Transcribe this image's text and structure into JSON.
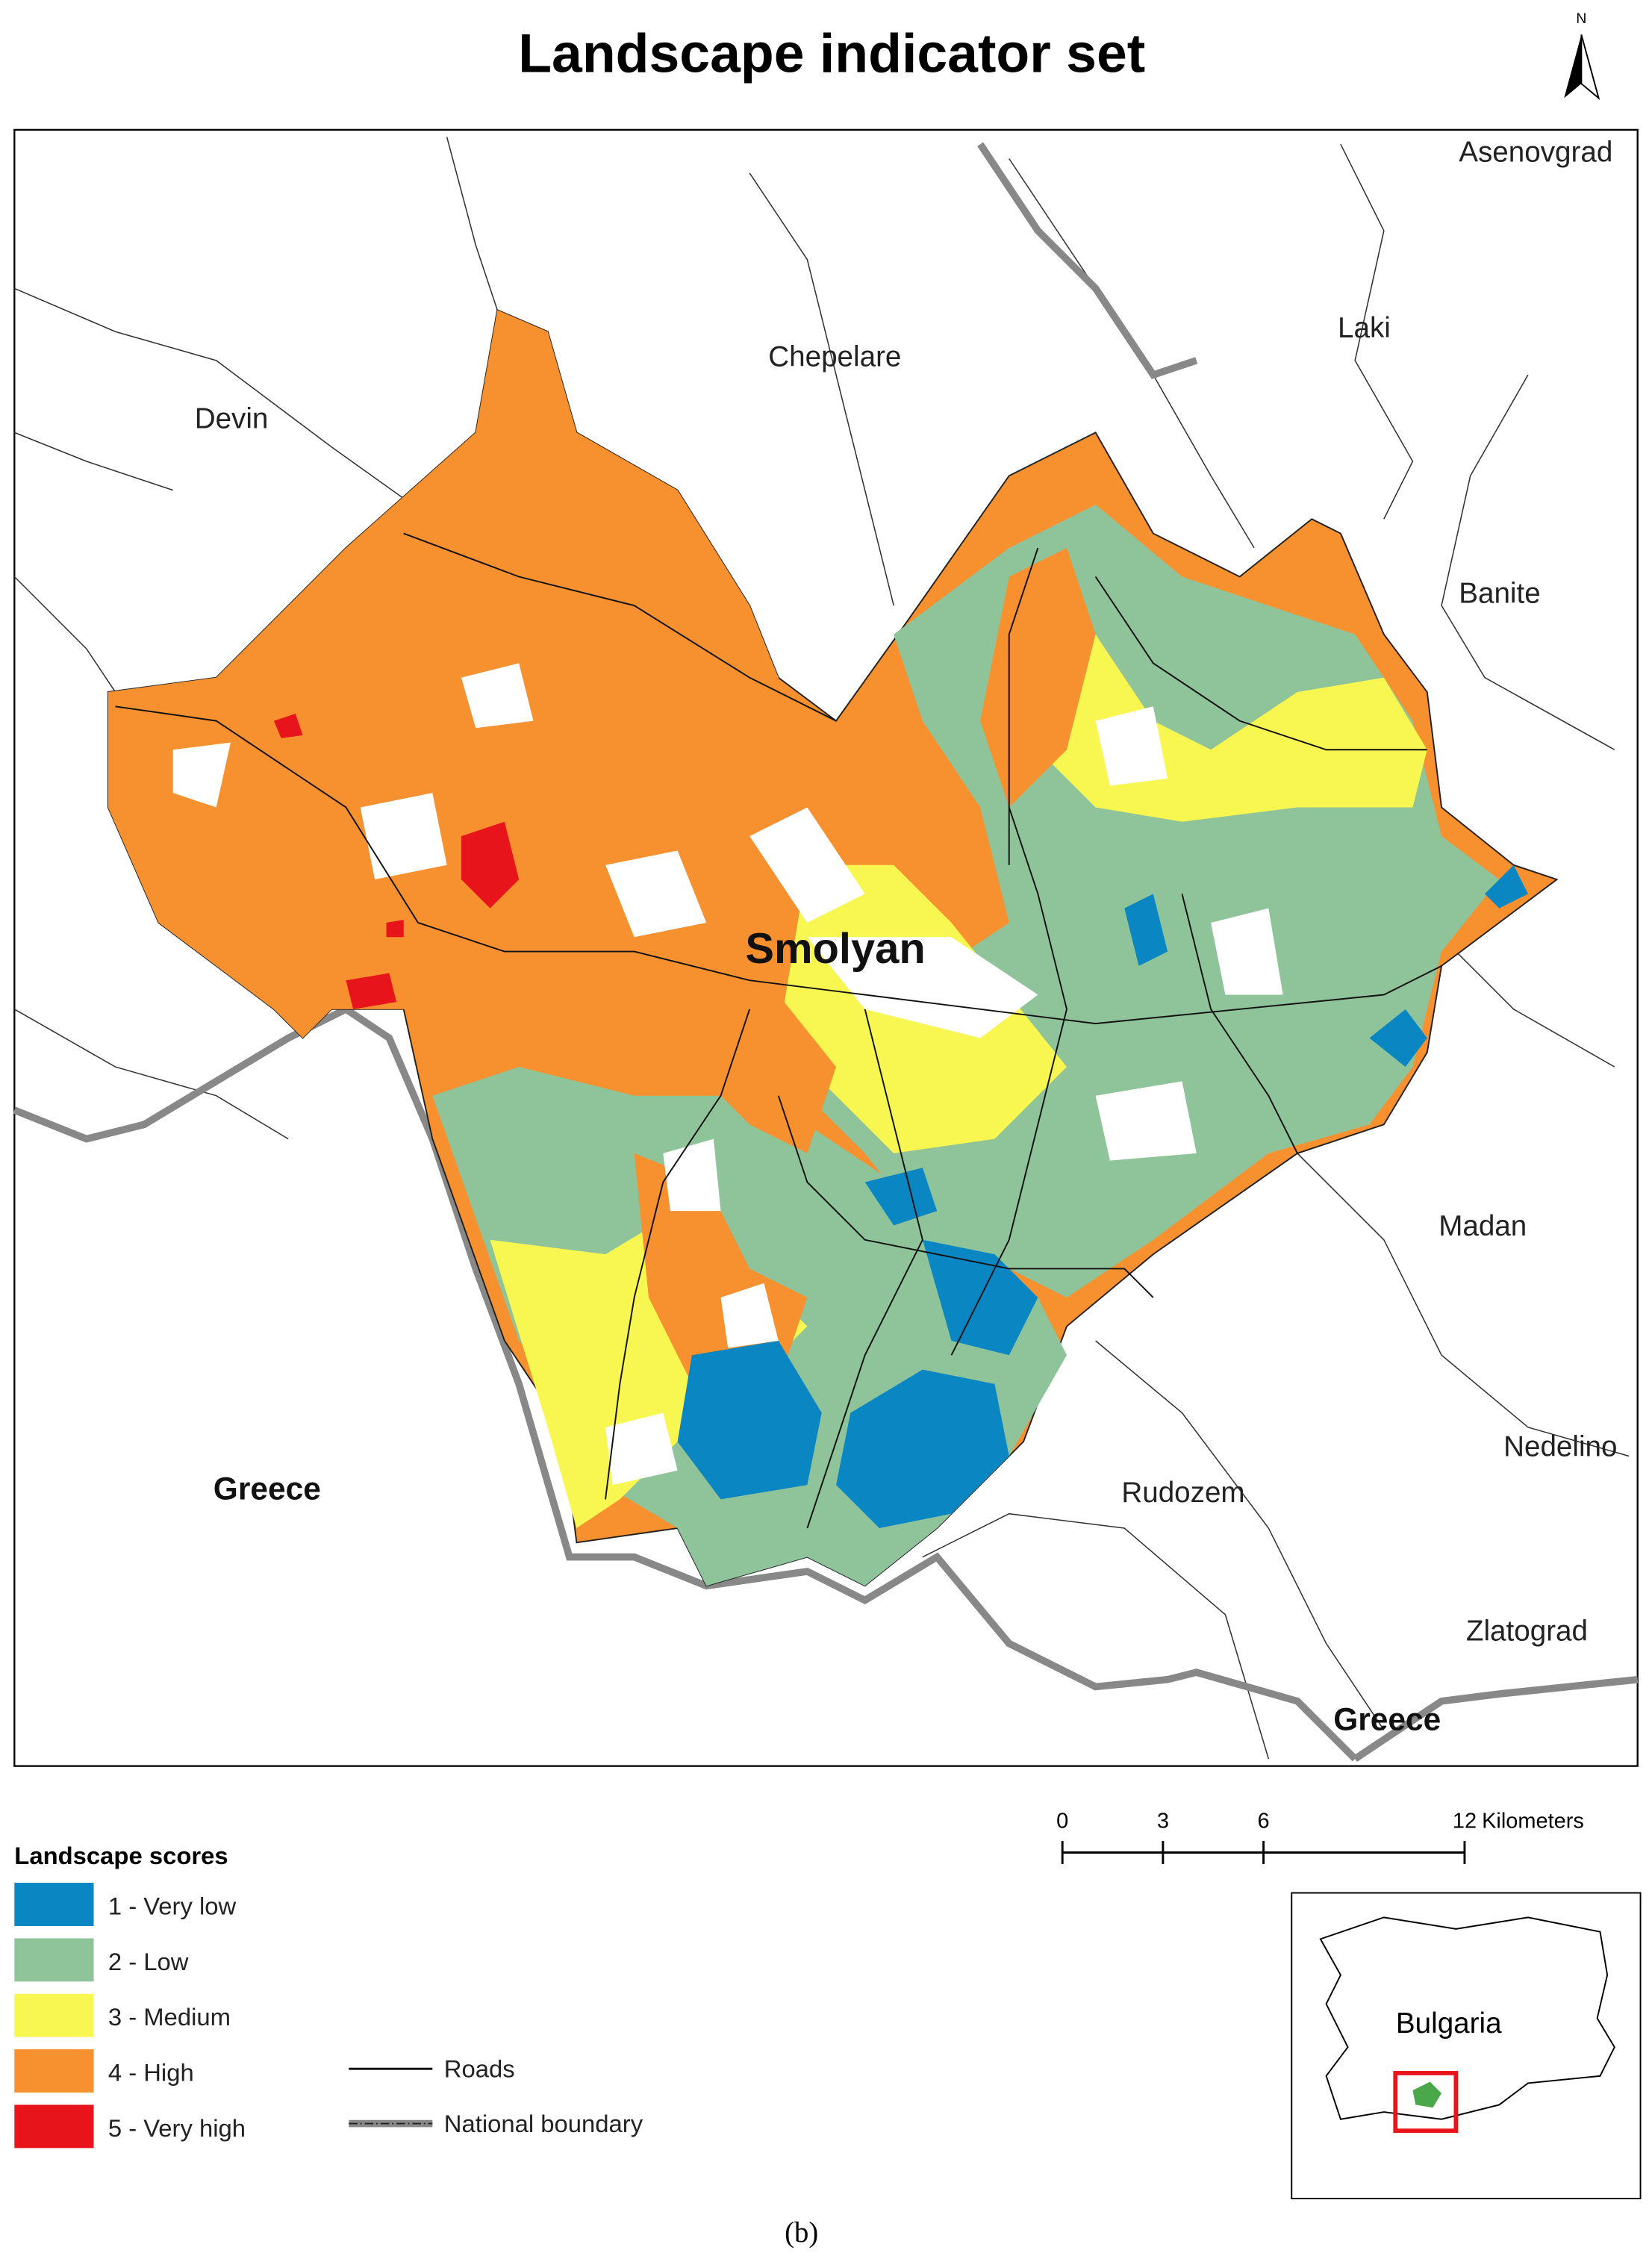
{
  "title": "Landscape indicator set",
  "north": "N",
  "places": {
    "asenovgrad": "Asenovgrad",
    "chepelare": "Chepelare",
    "laki": "Laki",
    "devin": "Devin",
    "banite": "Banite",
    "smolyan": "Smolyan",
    "madan": "Madan",
    "nedelino": "Nedelino",
    "rudozem": "Rudozem",
    "greece_west": "Greece",
    "zlatograd": "Zlatograd",
    "greece_south": "Greece"
  },
  "legend": {
    "title": "Landscape scores",
    "items": [
      {
        "label": "1 - Very low",
        "color": "#0a86c2"
      },
      {
        "label": "2 - Low",
        "color": "#8fc49a"
      },
      {
        "label": "3 - Medium",
        "color": "#f8f651"
      },
      {
        "label": "4 - High",
        "color": "#f7902f"
      },
      {
        "label": "5 - Very high",
        "color": "#e8141b"
      }
    ],
    "roads": "Roads",
    "boundary": "National boundary"
  },
  "scale_bar": {
    "ticks": [
      0,
      3,
      6,
      12
    ],
    "unit": "Kilometers"
  },
  "inset": {
    "label": "Bulgaria"
  },
  "caption": "(b)"
}
